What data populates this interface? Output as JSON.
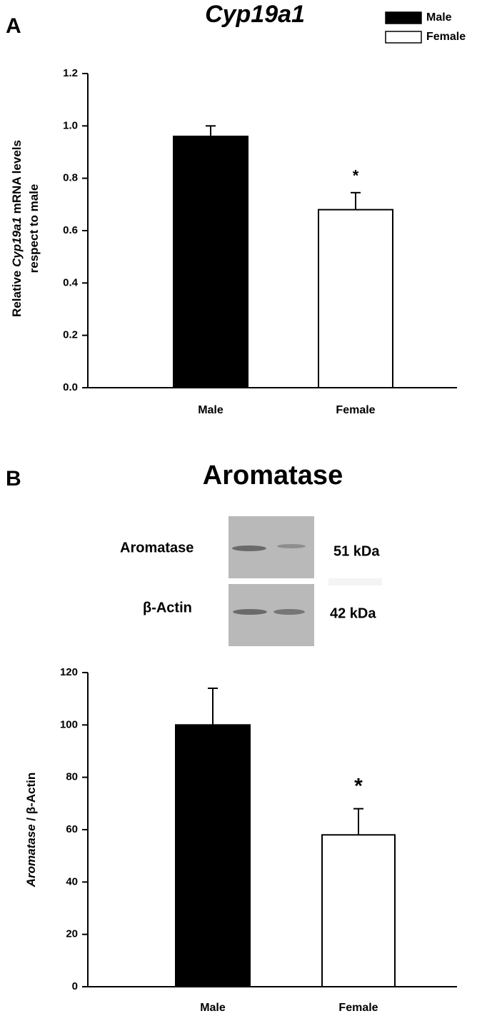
{
  "chart_data": [
    {
      "type": "bar",
      "panel": "A",
      "title": "Cyp19a1",
      "ylabel": [
        "Relative Cyp19a1 mRNA levels",
        "respect to male"
      ],
      "categories": [
        "Male",
        "Female"
      ],
      "values": [
        0.96,
        0.68
      ],
      "errors": [
        0.04,
        0.065
      ],
      "colors": [
        "#000000",
        "#ffffff"
      ],
      "annotations": [
        null,
        "*"
      ],
      "ylim": [
        0,
        1.2
      ],
      "yticks": [
        {
          "value": 0,
          "label": "0.0"
        },
        0.2,
        0.4,
        0.6,
        0.8,
        {
          "value": 1,
          "label": "1.0"
        },
        1.2
      ],
      "legend": {
        "labels": [
          "Male",
          "Female"
        ],
        "position": "upper right"
      }
    },
    {
      "type": "bar",
      "panel": "B",
      "title": "Aromatase",
      "ylabel": [
        "Aromatase / β-Actin"
      ],
      "categories": [
        "Male",
        "Female"
      ],
      "values": [
        100,
        58
      ],
      "errors": [
        14,
        10
      ],
      "colors": [
        "#000000",
        "#ffffff"
      ],
      "annotations": [
        null,
        "*"
      ],
      "ylim": [
        0,
        120
      ],
      "yticks": [
        0,
        20,
        40,
        60,
        80,
        100,
        120
      ],
      "blot": {
        "proteins": [
          "Aromatase",
          "β-Actin"
        ],
        "sizes": [
          "51 kDa",
          "42 kDa"
        ]
      }
    }
  ]
}
